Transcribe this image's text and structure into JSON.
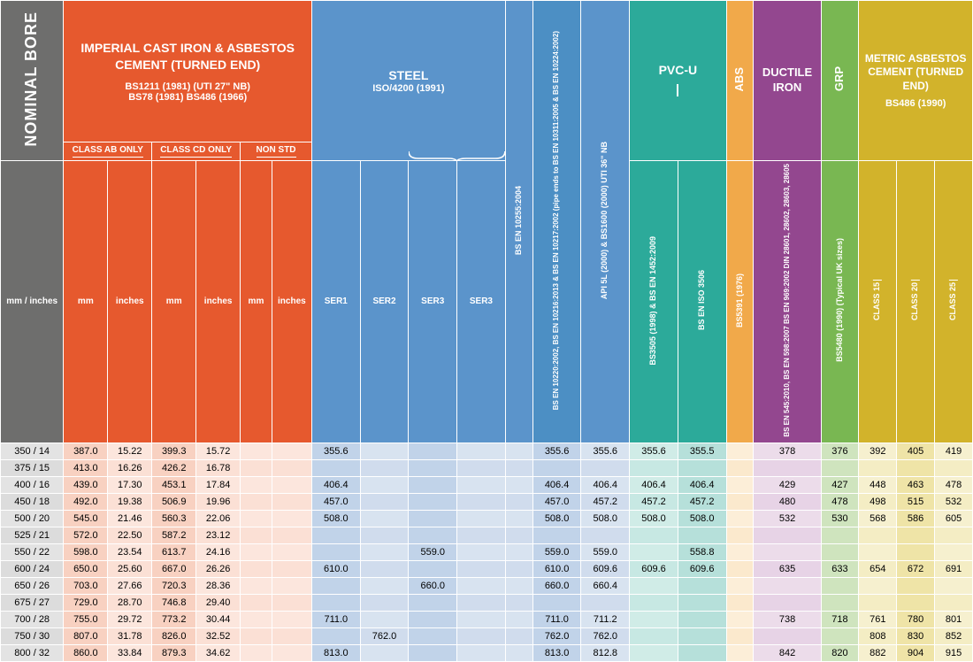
{
  "colors": {
    "grey": "#6e6e6d",
    "orange": "#e6592e",
    "blue": "#5b94cb",
    "blue2": "#4c8fc4",
    "teal": "#2caa9a",
    "tan": "#f1a94a",
    "purple": "#93478f",
    "green": "#79b752",
    "gold": "#d2b32b"
  },
  "headers": {
    "nominal_bore": "NOMINAL BORE",
    "nominal_sub": "mm / inches",
    "imperial": {
      "title": "IMPERIAL CAST IRON & ASBESTOS CEMENT (TURNED END)",
      "sub1": "BS1211 (1981) (UTI 27\" NB)",
      "sub2": "BS78 (1981) BS486 (1966)",
      "ab": "CLASS AB ONLY",
      "cd": "CLASS CD ONLY",
      "non": "NON STD",
      "mm": "mm",
      "in": "inches"
    },
    "steel": {
      "title": "STEEL",
      "sub": "ISO/4200 (1991)",
      "ser1": "SER1",
      "ser2": "SER2",
      "ser3a": "SER3",
      "ser3b": "SER3"
    },
    "bs10255": "BS EN 10255:2004",
    "bs10220": "BS EN 10220:2002, BS EN 10216:2013 & BS EN 10217:2002 (pipe ends to BS EN 10311:2005 & BS EN 10224:2002)",
    "api": "API 5L (2000) & BS1600 (2000) UTI 36\" NB",
    "pvcu": {
      "title": "PVC-U",
      "c1": "BS3505 (1998) & BS EN 1452:2009",
      "c2": "BS EN ISO 3506"
    },
    "abs": {
      "title": "ABS",
      "sub": "BS5391 (1976)"
    },
    "ductile": {
      "title": "DUCTILE IRON",
      "sub": "BS EN 545:2010, BS EN 598:2007 BS EN 969:2002 DIN 28601, 28602, 28603, 28605"
    },
    "grp": {
      "title": "GRP",
      "sub": "BS5480 (1990) (Typical UK sizes)"
    },
    "metric": {
      "title": "METRIC ASBESTOS CEMENT (TURNED END)",
      "sub": "BS486 (1990)",
      "c15": "CLASS 15",
      "c20": "CLASS 20",
      "c25": "CLASS 25"
    }
  },
  "rows": [
    {
      "nb": "350 / 14",
      "ab_mm": "387.0",
      "ab_in": "15.22",
      "cd_mm": "399.3",
      "cd_in": "15.72",
      "ns_mm": "",
      "ns_in": "",
      "s1": "355.6",
      "s2": "",
      "s3a": "",
      "s3b": "",
      "b255": "",
      "b220": "355.6",
      "api": "355.6",
      "pv1": "355.6",
      "pv2": "355.5",
      "abs": "",
      "di": "378",
      "grp": "376",
      "m15": "392",
      "m20": "405",
      "m25": "419"
    },
    {
      "nb": "375 / 15",
      "ab_mm": "413.0",
      "ab_in": "16.26",
      "cd_mm": "426.2",
      "cd_in": "16.78",
      "ns_mm": "",
      "ns_in": "",
      "s1": "",
      "s2": "",
      "s3a": "",
      "s3b": "",
      "b255": "",
      "b220": "",
      "api": "",
      "pv1": "",
      "pv2": "",
      "abs": "",
      "di": "",
      "grp": "",
      "m15": "",
      "m20": "",
      "m25": ""
    },
    {
      "nb": "400 / 16",
      "ab_mm": "439.0",
      "ab_in": "17.30",
      "cd_mm": "453.1",
      "cd_in": "17.84",
      "ns_mm": "",
      "ns_in": "",
      "s1": "406.4",
      "s2": "",
      "s3a": "",
      "s3b": "",
      "b255": "",
      "b220": "406.4",
      "api": "406.4",
      "pv1": "406.4",
      "pv2": "406.4",
      "abs": "",
      "di": "429",
      "grp": "427",
      "m15": "448",
      "m20": "463",
      "m25": "478"
    },
    {
      "nb": "450 / 18",
      "ab_mm": "492.0",
      "ab_in": "19.38",
      "cd_mm": "506.9",
      "cd_in": "19.96",
      "ns_mm": "",
      "ns_in": "",
      "s1": "457.0",
      "s2": "",
      "s3a": "",
      "s3b": "",
      "b255": "",
      "b220": "457.0",
      "api": "457.2",
      "pv1": "457.2",
      "pv2": "457.2",
      "abs": "",
      "di": "480",
      "grp": "478",
      "m15": "498",
      "m20": "515",
      "m25": "532"
    },
    {
      "nb": "500 / 20",
      "ab_mm": "545.0",
      "ab_in": "21.46",
      "cd_mm": "560.3",
      "cd_in": "22.06",
      "ns_mm": "",
      "ns_in": "",
      "s1": "508.0",
      "s2": "",
      "s3a": "",
      "s3b": "",
      "b255": "",
      "b220": "508.0",
      "api": "508.0",
      "pv1": "508.0",
      "pv2": "508.0",
      "abs": "",
      "di": "532",
      "grp": "530",
      "m15": "568",
      "m20": "586",
      "m25": "605"
    },
    {
      "nb": "525 / 21",
      "ab_mm": "572.0",
      "ab_in": "22.50",
      "cd_mm": "587.2",
      "cd_in": "23.12",
      "ns_mm": "",
      "ns_in": "",
      "s1": "",
      "s2": "",
      "s3a": "",
      "s3b": "",
      "b255": "",
      "b220": "",
      "api": "",
      "pv1": "",
      "pv2": "",
      "abs": "",
      "di": "",
      "grp": "",
      "m15": "",
      "m20": "",
      "m25": ""
    },
    {
      "nb": "550 / 22",
      "ab_mm": "598.0",
      "ab_in": "23.54",
      "cd_mm": "613.7",
      "cd_in": "24.16",
      "ns_mm": "",
      "ns_in": "",
      "s1": "",
      "s2": "",
      "s3a": "559.0",
      "s3b": "",
      "b255": "",
      "b220": "559.0",
      "api": "559.0",
      "pv1": "",
      "pv2": "558.8",
      "abs": "",
      "di": "",
      "grp": "",
      "m15": "",
      "m20": "",
      "m25": ""
    },
    {
      "nb": "600 / 24",
      "ab_mm": "650.0",
      "ab_in": "25.60",
      "cd_mm": "667.0",
      "cd_in": "26.26",
      "ns_mm": "",
      "ns_in": "",
      "s1": "610.0",
      "s2": "",
      "s3a": "",
      "s3b": "",
      "b255": "",
      "b220": "610.0",
      "api": "609.6",
      "pv1": "609.6",
      "pv2": "609.6",
      "abs": "",
      "di": "635",
      "grp": "633",
      "m15": "654",
      "m20": "672",
      "m25": "691"
    },
    {
      "nb": "650 / 26",
      "ab_mm": "703.0",
      "ab_in": "27.66",
      "cd_mm": "720.3",
      "cd_in": "28.36",
      "ns_mm": "",
      "ns_in": "",
      "s1": "",
      "s2": "",
      "s3a": "660.0",
      "s3b": "",
      "b255": "",
      "b220": "660.0",
      "api": "660.4",
      "pv1": "",
      "pv2": "",
      "abs": "",
      "di": "",
      "grp": "",
      "m15": "",
      "m20": "",
      "m25": ""
    },
    {
      "nb": "675 / 27",
      "ab_mm": "729.0",
      "ab_in": "28.70",
      "cd_mm": "746.8",
      "cd_in": "29.40",
      "ns_mm": "",
      "ns_in": "",
      "s1": "",
      "s2": "",
      "s3a": "",
      "s3b": "",
      "b255": "",
      "b220": "",
      "api": "",
      "pv1": "",
      "pv2": "",
      "abs": "",
      "di": "",
      "grp": "",
      "m15": "",
      "m20": "",
      "m25": ""
    },
    {
      "nb": "700 / 28",
      "ab_mm": "755.0",
      "ab_in": "29.72",
      "cd_mm": "773.2",
      "cd_in": "30.44",
      "ns_mm": "",
      "ns_in": "",
      "s1": "711.0",
      "s2": "",
      "s3a": "",
      "s3b": "",
      "b255": "",
      "b220": "711.0",
      "api": "711.2",
      "pv1": "",
      "pv2": "",
      "abs": "",
      "di": "738",
      "grp": "718",
      "m15": "761",
      "m20": "780",
      "m25": "801"
    },
    {
      "nb": "750 / 30",
      "ab_mm": "807.0",
      "ab_in": "31.78",
      "cd_mm": "826.0",
      "cd_in": "32.52",
      "ns_mm": "",
      "ns_in": "",
      "s1": "",
      "s2": "762.0",
      "s3a": "",
      "s3b": "",
      "b255": "",
      "b220": "762.0",
      "api": "762.0",
      "pv1": "",
      "pv2": "",
      "abs": "",
      "di": "",
      "grp": "",
      "m15": "808",
      "m20": "830",
      "m25": "852"
    },
    {
      "nb": "800 / 32",
      "ab_mm": "860.0",
      "ab_in": "33.84",
      "cd_mm": "879.3",
      "cd_in": "34.62",
      "ns_mm": "",
      "ns_in": "",
      "s1": "813.0",
      "s2": "",
      "s3a": "",
      "s3b": "",
      "b255": "",
      "b220": "813.0",
      "api": "812.8",
      "pv1": "",
      "pv2": "",
      "abs": "",
      "di": "842",
      "grp": "820",
      "m15": "882",
      "m20": "904",
      "m25": "915"
    }
  ]
}
